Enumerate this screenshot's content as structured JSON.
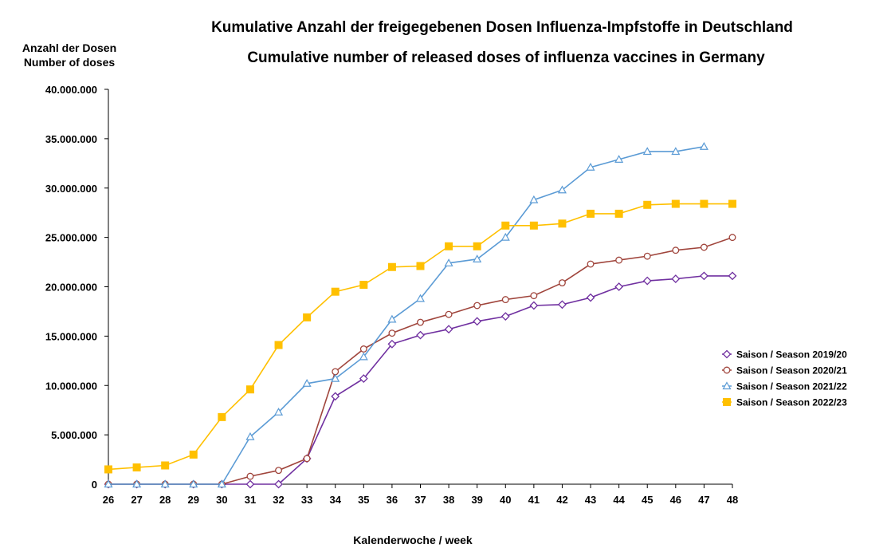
{
  "chart_data": {
    "type": "line",
    "title": "Kumulative Anzahl der freigegebenen Dosen Influenza-Impfstoffe in Deutschland",
    "subtitle": "Cumulative number of released doses of influenza vaccines in Germany",
    "ylabel_line1": "Anzahl der Dosen",
    "ylabel_line2": "Number of doses",
    "xlabel": "Kalenderwoche / week",
    "ylim": [
      0,
      40000000
    ],
    "yticks": [
      0,
      5000000,
      10000000,
      15000000,
      20000000,
      25000000,
      30000000,
      35000000,
      40000000
    ],
    "ytick_labels": [
      "0",
      "5.000.000",
      "10.000.000",
      "15.000.000",
      "20.000.000",
      "25.000.000",
      "30.000.000",
      "35.000.000",
      "40.000.000"
    ],
    "x": [
      26,
      27,
      28,
      29,
      30,
      31,
      32,
      33,
      34,
      35,
      36,
      37,
      38,
      39,
      40,
      41,
      42,
      43,
      44,
      45,
      46,
      47,
      48
    ],
    "x_labels": [
      "26",
      "27",
      "28",
      "29",
      "30",
      "31",
      "32",
      "33",
      "34",
      "35",
      "36",
      "37",
      "38",
      "39",
      "40",
      "41",
      "42",
      "43",
      "44",
      "45",
      "46",
      "47",
      "48"
    ],
    "legend_position": "right",
    "series": [
      {
        "name": "Saison / Season 2019/20",
        "color": "#7030A0",
        "marker": "diamond",
        "values": [
          0,
          0,
          0,
          0,
          0,
          0,
          0,
          2600000,
          8900000,
          10700000,
          14200000,
          15100000,
          15700000,
          16500000,
          17000000,
          18100000,
          18200000,
          18900000,
          20000000,
          20600000,
          20800000,
          21100000,
          21100000
        ]
      },
      {
        "name": "Saison / Season 2020/21",
        "color": "#A0453C",
        "marker": "circle",
        "values": [
          0,
          0,
          0,
          0,
          0,
          800000,
          1400000,
          2600000,
          11400000,
          13700000,
          15300000,
          16400000,
          17200000,
          18100000,
          18700000,
          19100000,
          20400000,
          22300000,
          22700000,
          23100000,
          23700000,
          24000000,
          25000000
        ]
      },
      {
        "name": "Saison / Season 2021/22",
        "color": "#5B9BD5",
        "marker": "triangle",
        "values": [
          0,
          0,
          0,
          0,
          0,
          4800000,
          7300000,
          10200000,
          10700000,
          12900000,
          16700000,
          18800000,
          22400000,
          22800000,
          25000000,
          28800000,
          29800000,
          32100000,
          32900000,
          33700000,
          33700000,
          34200000,
          null
        ]
      },
      {
        "name": "Saison / Season 2022/23",
        "color": "#FFC000",
        "marker": "square",
        "values": [
          1500000,
          1700000,
          1900000,
          3000000,
          6800000,
          9600000,
          14100000,
          16900000,
          19500000,
          20200000,
          22000000,
          22100000,
          24100000,
          24100000,
          26200000,
          26200000,
          26400000,
          27400000,
          27400000,
          28300000,
          28400000,
          28400000,
          28400000
        ]
      }
    ]
  }
}
